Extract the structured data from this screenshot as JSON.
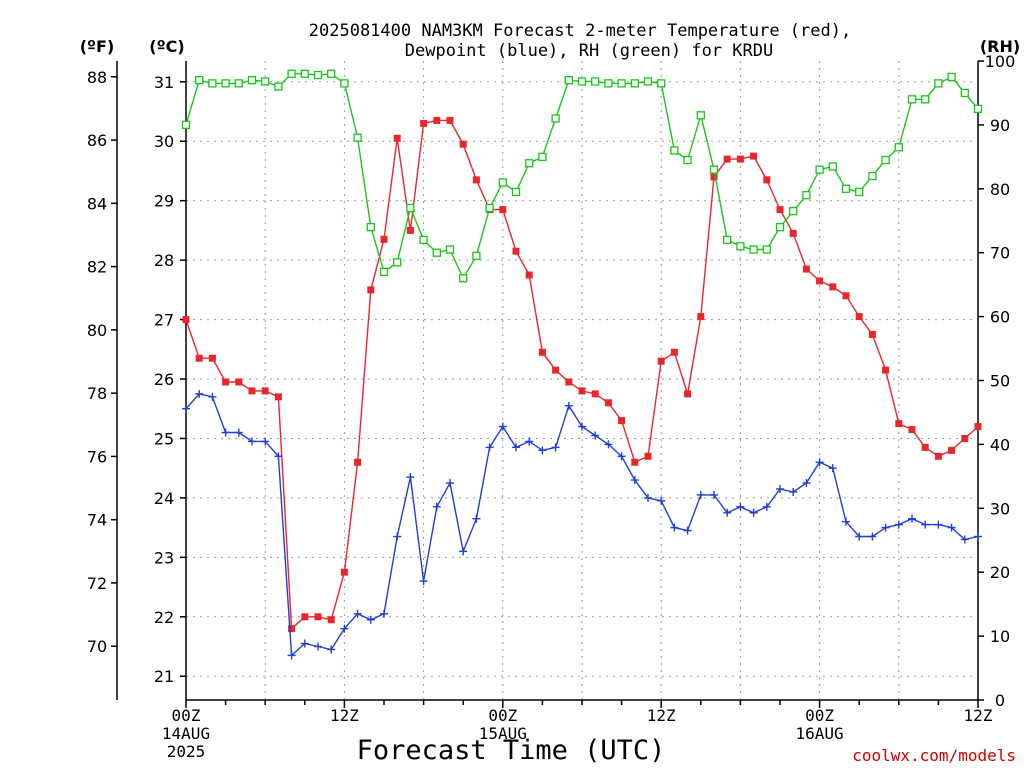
{
  "title_line1": "2025081400 NAM3KM Forecast 2-meter Temperature (red),",
  "title_line2": "Dewpoint (blue), RH (green) for KRDU",
  "xlabel": "Forecast Time (UTC)",
  "credit": "coolwx.com/models",
  "chart_data": {
    "type": "line",
    "title": "2025081400 NAM3KM Forecast 2-meter Temperature (red), Dewpoint (blue), RH (green) for KRDU",
    "xlabel": "Forecast Time (UTC)",
    "x_unit": "forecast hour from 2025-08-14 00Z",
    "x": [
      0,
      1,
      2,
      3,
      4,
      5,
      6,
      7,
      8,
      9,
      10,
      11,
      12,
      13,
      14,
      15,
      16,
      17,
      18,
      19,
      20,
      21,
      22,
      23,
      24,
      25,
      26,
      27,
      28,
      29,
      30,
      31,
      32,
      33,
      34,
      35,
      36,
      37,
      38,
      39,
      40,
      41,
      42,
      43,
      44,
      45,
      46,
      47,
      48,
      49,
      50,
      51,
      52,
      53,
      54,
      55,
      56,
      57,
      58,
      59,
      60
    ],
    "xlim": [
      0,
      60
    ],
    "x_ticks": [
      {
        "at": 0,
        "lines": [
          "00Z",
          "14AUG",
          "2025"
        ]
      },
      {
        "at": 12,
        "lines": [
          "12Z"
        ]
      },
      {
        "at": 24,
        "lines": [
          "00Z",
          "15AUG"
        ]
      },
      {
        "at": 36,
        "lines": [
          "12Z"
        ]
      },
      {
        "at": 48,
        "lines": [
          "00Z",
          "16AUG"
        ]
      },
      {
        "at": 60,
        "lines": [
          "12Z"
        ]
      }
    ],
    "axes": {
      "left_f": {
        "label": "(ºF)",
        "lim": [
          68.3,
          88.5
        ],
        "ticks": [
          70,
          72,
          74,
          76,
          78,
          80,
          82,
          84,
          86,
          88
        ]
      },
      "left_c": {
        "label": "(ºC)",
        "lim": [
          20.6,
          31.35
        ],
        "ticks": [
          21,
          22,
          23,
          24,
          25,
          26,
          27,
          28,
          29,
          30,
          31
        ]
      },
      "right_rh": {
        "label": "(RH)",
        "lim": [
          0,
          100
        ],
        "ticks": [
          0,
          10,
          20,
          30,
          40,
          50,
          60,
          70,
          80,
          90,
          100
        ]
      }
    },
    "grid": true,
    "series": [
      {
        "name": "Temperature",
        "color": "#e8272c",
        "marker": "filled-square",
        "axis": "left_c",
        "values": [
          27.0,
          26.35,
          26.35,
          25.95,
          25.95,
          25.8,
          25.8,
          25.7,
          21.8,
          22.0,
          22.0,
          21.95,
          22.75,
          24.6,
          27.5,
          28.35,
          30.05,
          28.5,
          30.3,
          30.35,
          30.35,
          29.95,
          29.35,
          28.85,
          28.85,
          28.15,
          27.75,
          26.45,
          26.15,
          25.95,
          25.8,
          25.75,
          25.6,
          25.3,
          24.6,
          24.7,
          26.3,
          26.45,
          25.75,
          27.05,
          29.4,
          29.7,
          29.7,
          29.75,
          29.35,
          28.85,
          28.45,
          27.85,
          27.65,
          27.55,
          27.4,
          27.05,
          26.75,
          26.15,
          25.25,
          25.15,
          24.85,
          24.7,
          24.8,
          25.0,
          25.2
        ]
      },
      {
        "name": "Dewpoint",
        "color": "#1f3fd6",
        "marker": "plus",
        "axis": "left_c",
        "values": [
          25.5,
          25.75,
          25.7,
          25.1,
          25.1,
          24.95,
          24.95,
          24.7,
          21.35,
          21.55,
          21.5,
          21.45,
          21.8,
          22.05,
          21.95,
          22.05,
          23.35,
          24.35,
          22.6,
          23.85,
          24.25,
          23.1,
          23.65,
          24.85,
          25.2,
          24.85,
          24.95,
          24.8,
          24.85,
          25.55,
          25.2,
          25.05,
          24.9,
          24.7,
          24.3,
          24.0,
          23.95,
          23.5,
          23.45,
          24.05,
          24.05,
          23.75,
          23.85,
          23.75,
          23.85,
          24.15,
          24.1,
          24.25,
          24.6,
          24.5,
          23.6,
          23.35,
          23.35,
          23.5,
          23.55,
          23.65,
          23.55,
          23.55,
          23.5,
          23.3,
          23.35
        ]
      },
      {
        "name": "RH",
        "color": "#19c619",
        "marker": "open-square",
        "axis": "right_rh",
        "values": [
          90,
          97,
          96.5,
          96.5,
          96.5,
          97,
          96.8,
          96,
          98,
          98,
          97.8,
          98,
          96.5,
          88,
          74,
          67,
          68.5,
          77,
          72,
          70,
          70.5,
          66,
          69.5,
          77,
          81,
          79.5,
          84,
          85,
          91,
          97,
          96.8,
          96.8,
          96.5,
          96.5,
          96.5,
          96.8,
          96.5,
          86,
          84.5,
          91.5,
          83,
          72,
          71,
          70.5,
          70.5,
          74,
          76.5,
          79,
          83,
          83.5,
          80,
          79.5,
          82,
          84.5,
          86.5,
          94,
          94,
          96.5,
          97.5,
          95,
          92.5
        ]
      }
    ]
  }
}
